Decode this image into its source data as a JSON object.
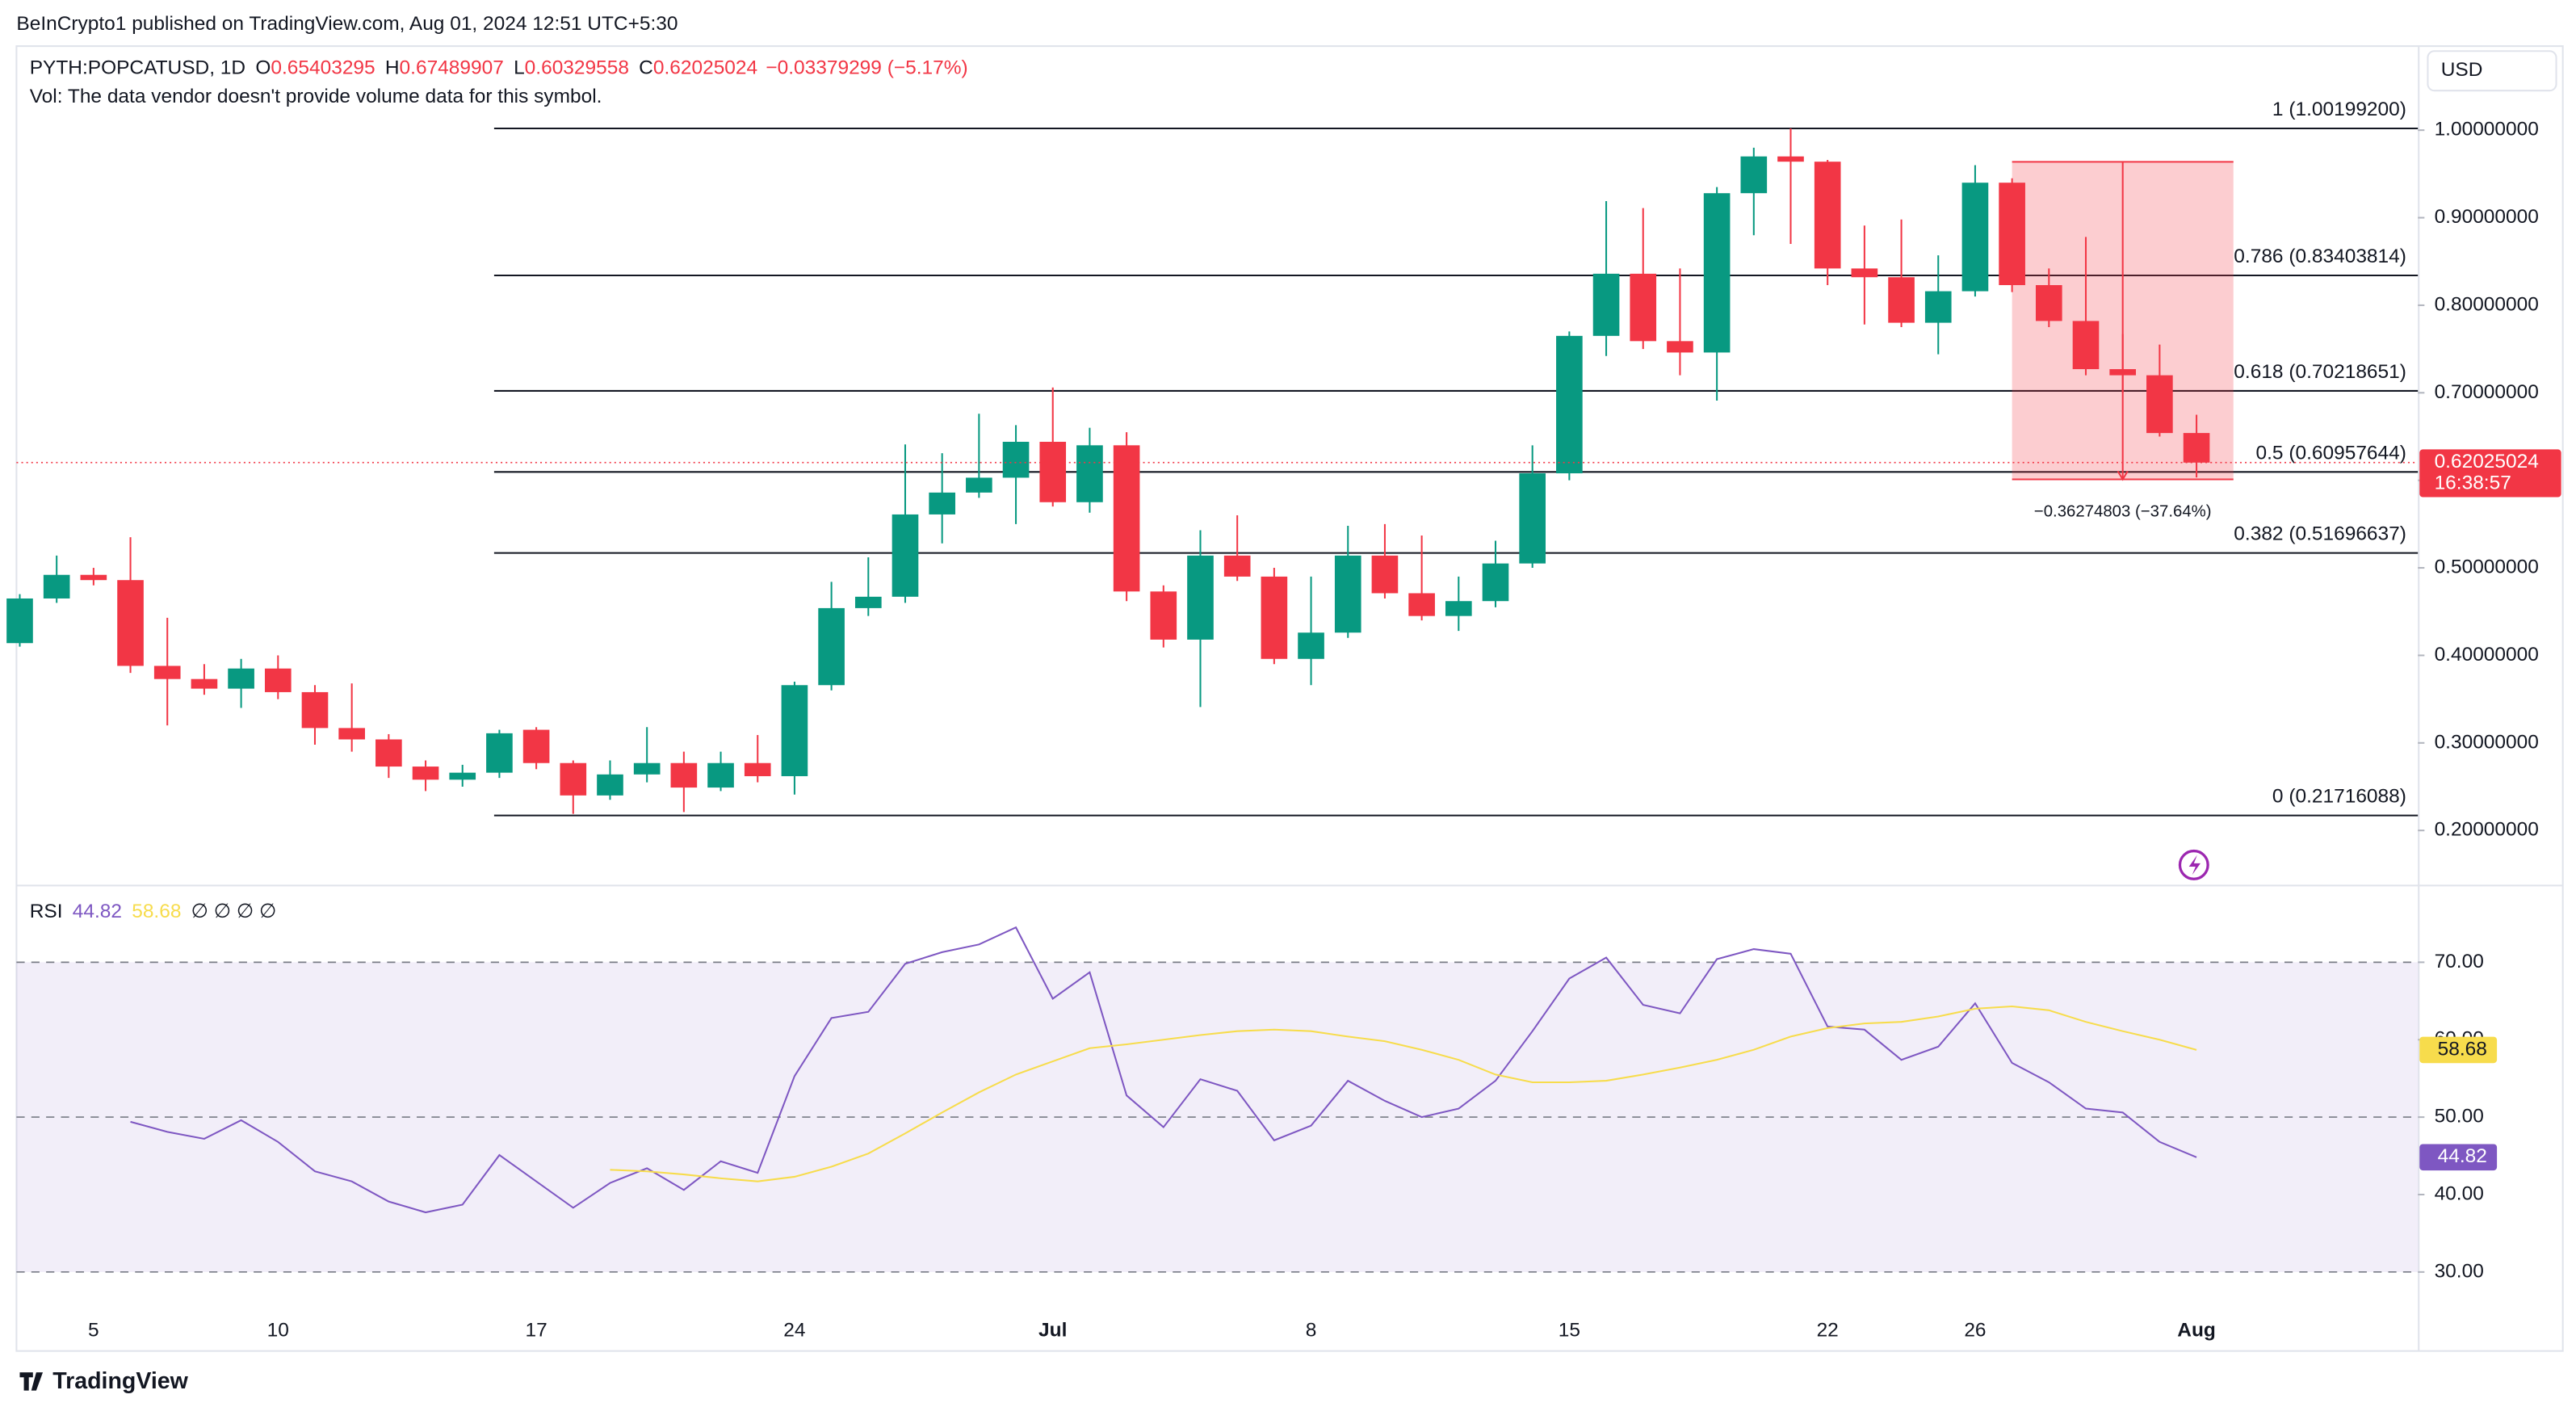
{
  "header": "BeInCrypto1 published on TradingView.com, Aug 01, 2024 12:51 UTC+5:30",
  "footer": "TradingView",
  "chart_data": [
    {
      "type": "candlestick",
      "symbol": "PYTH:POPCATUSD, 1D",
      "ohlc_keys": [
        "O",
        "H",
        "L",
        "C"
      ],
      "change": "−0.03379299 (−5.17%)",
      "volume_note": "Vol: The data vendor doesn't provide volume data for this symbol.",
      "currency": "USD",
      "countdown": "16:38:57",
      "up_color": "#089981",
      "down_color": "#f23645",
      "categories": [
        null,
        null,
        "5",
        null,
        null,
        null,
        null,
        "10",
        null,
        null,
        null,
        null,
        null,
        null,
        "17",
        null,
        null,
        null,
        null,
        null,
        null,
        "24",
        null,
        null,
        null,
        null,
        null,
        null,
        "Jul",
        null,
        null,
        null,
        null,
        null,
        null,
        "8",
        null,
        null,
        null,
        null,
        null,
        null,
        "15",
        null,
        null,
        null,
        null,
        null,
        null,
        "22",
        null,
        null,
        null,
        "26",
        null,
        null,
        null,
        null,
        null,
        "Aug"
      ],
      "open": [
        0.414,
        0.465,
        0.492,
        0.486,
        0.388,
        0.373,
        0.362,
        0.385,
        0.358,
        0.317,
        0.304,
        0.273,
        0.258,
        0.266,
        0.315,
        0.277,
        0.24,
        0.264,
        0.277,
        0.249,
        0.277,
        0.262,
        0.366,
        0.454,
        0.467,
        0.561,
        0.586,
        0.603,
        0.644,
        0.575,
        0.64,
        0.473,
        0.418,
        0.514,
        0.49,
        0.396,
        0.426,
        0.514,
        0.471,
        0.445,
        0.462,
        0.505,
        0.608,
        0.765,
        0.836,
        0.759,
        0.746,
        0.928,
        0.97,
        0.964,
        0.842,
        0.832,
        0.78,
        0.816,
        0.94,
        0.823,
        0.782,
        0.727,
        0.72,
        0.65403295
      ],
      "high": [
        0.47,
        0.514,
        0.5,
        0.535,
        0.443,
        0.39,
        0.396,
        0.4,
        0.366,
        0.368,
        0.31,
        0.28,
        0.275,
        0.315,
        0.318,
        0.28,
        0.28,
        0.318,
        0.29,
        0.29,
        0.309,
        0.37,
        0.484,
        0.512,
        0.641,
        0.631,
        0.676,
        0.663,
        0.706,
        0.66,
        0.655,
        0.48,
        0.543,
        0.56,
        0.5,
        0.49,
        0.548,
        0.55,
        0.537,
        0.49,
        0.531,
        0.64,
        0.77,
        0.919,
        0.911,
        0.842,
        0.935,
        0.98,
        1.002,
        0.966,
        0.891,
        0.898,
        0.857,
        0.96,
        0.945,
        0.842,
        0.878,
        0.767,
        0.755,
        0.67489907
      ],
      "low": [
        0.41,
        0.46,
        0.48,
        0.38,
        0.32,
        0.355,
        0.34,
        0.35,
        0.298,
        0.29,
        0.26,
        0.245,
        0.25,
        0.26,
        0.27,
        0.219,
        0.235,
        0.255,
        0.221,
        0.245,
        0.255,
        0.241,
        0.36,
        0.445,
        0.46,
        0.528,
        0.58,
        0.55,
        0.57,
        0.563,
        0.462,
        0.409,
        0.341,
        0.485,
        0.39,
        0.366,
        0.42,
        0.465,
        0.44,
        0.428,
        0.455,
        0.5,
        0.6,
        0.742,
        0.75,
        0.72,
        0.691,
        0.88,
        0.87,
        0.823,
        0.778,
        0.775,
        0.744,
        0.81,
        0.815,
        0.775,
        0.72,
        0.7,
        0.65,
        0.60329558
      ],
      "close": [
        0.465,
        0.492,
        0.486,
        0.388,
        0.373,
        0.362,
        0.385,
        0.358,
        0.317,
        0.304,
        0.273,
        0.258,
        0.266,
        0.311,
        0.277,
        0.24,
        0.264,
        0.277,
        0.249,
        0.277,
        0.262,
        0.366,
        0.454,
        0.467,
        0.561,
        0.586,
        0.603,
        0.644,
        0.575,
        0.64,
        0.473,
        0.418,
        0.514,
        0.49,
        0.396,
        0.426,
        0.514,
        0.471,
        0.445,
        0.462,
        0.505,
        0.608,
        0.765,
        0.836,
        0.759,
        0.746,
        0.928,
        0.97,
        0.964,
        0.842,
        0.832,
        0.78,
        0.816,
        0.94,
        0.823,
        0.782,
        0.727,
        0.72,
        0.654,
        0.62025024
      ],
      "ylim": [
        0.138,
        1.096
      ],
      "yticks": [
        {
          "value": 0.2,
          "label": "0.20000000"
        },
        {
          "value": 0.3,
          "label": "0.30000000"
        },
        {
          "value": 0.4,
          "label": "0.40000000"
        },
        {
          "value": 0.5,
          "label": "0.50000000"
        },
        {
          "value": 0.6,
          "label": "0.60000000"
        },
        {
          "value": 0.7,
          "label": "0.70000000"
        },
        {
          "value": 0.8,
          "label": "0.80000000"
        },
        {
          "value": 0.9,
          "label": "0.90000000"
        },
        {
          "value": 1.0,
          "label": "1.00000000"
        }
      ],
      "fib": [
        {
          "price": 1.001992,
          "label": "1 (1.00199200)"
        },
        {
          "price": 0.83403814,
          "label": "0.786 (0.83403814)"
        },
        {
          "price": 0.70218651,
          "label": "0.618 (0.70218651)"
        },
        {
          "price": 0.60957644,
          "label": "0.5 (0.60957644)"
        },
        {
          "price": 0.51696637,
          "label": "0.382 (0.51696637)"
        },
        {
          "price": 0.21716088,
          "label": "0 (0.21716088)"
        }
      ],
      "measure": {
        "high": 0.96385,
        "low": 0.6011,
        "label": "−0.36274803 (−37.64%)"
      }
    },
    {
      "type": "line",
      "title": "RSI",
      "legend_extra": "∅ ∅ ∅ ∅",
      "ylim": [
        19.8,
        79.8
      ],
      "yticks": [
        {
          "value": 30,
          "label": "30.00"
        },
        {
          "value": 40,
          "label": "40.00"
        },
        {
          "value": 50,
          "label": "50.00"
        },
        {
          "value": 60,
          "label": "60.00"
        },
        {
          "value": 70,
          "label": "70.00"
        }
      ],
      "band": [
        30,
        70
      ],
      "dashed_levels": [
        30,
        50,
        70
      ],
      "series": [
        {
          "color": "#7e57c2",
          "values": [
            null,
            null,
            null,
            49.4,
            48.1,
            47.2,
            49.6,
            46.8,
            43.0,
            41.7,
            39.1,
            37.7,
            38.7,
            45.1,
            41.7,
            38.3,
            41.5,
            43.4,
            40.6,
            44.3,
            42.8,
            55.3,
            62.8,
            63.6,
            69.8,
            71.3,
            72.3,
            74.5,
            65.3,
            68.7,
            52.8,
            48.7,
            54.9,
            53.4,
            47.0,
            48.9,
            54.7,
            52.1,
            50.0,
            51.1,
            54.7,
            61.1,
            67.9,
            70.6,
            64.5,
            63.4,
            70.4,
            71.7,
            71.1,
            61.7,
            61.3,
            57.4,
            59.1,
            64.7,
            57.0,
            54.5,
            51.1,
            50.6,
            46.8,
            44.82
          ]
        },
        {
          "color": "#f7dc4c",
          "values": [
            null,
            null,
            null,
            null,
            null,
            null,
            null,
            null,
            null,
            null,
            null,
            null,
            null,
            null,
            null,
            null,
            43.2,
            43.0,
            42.6,
            42.1,
            41.7,
            42.3,
            43.6,
            45.3,
            47.9,
            50.6,
            53.2,
            55.5,
            57.2,
            58.9,
            59.4,
            60.0,
            60.6,
            61.1,
            61.3,
            61.1,
            60.4,
            59.8,
            58.7,
            57.4,
            55.5,
            54.5,
            54.5,
            54.7,
            55.5,
            56.4,
            57.4,
            58.7,
            60.4,
            61.5,
            62.1,
            62.3,
            63.0,
            64.0,
            64.3,
            63.8,
            62.3,
            61.1,
            60.0,
            58.68
          ]
        }
      ]
    }
  ]
}
